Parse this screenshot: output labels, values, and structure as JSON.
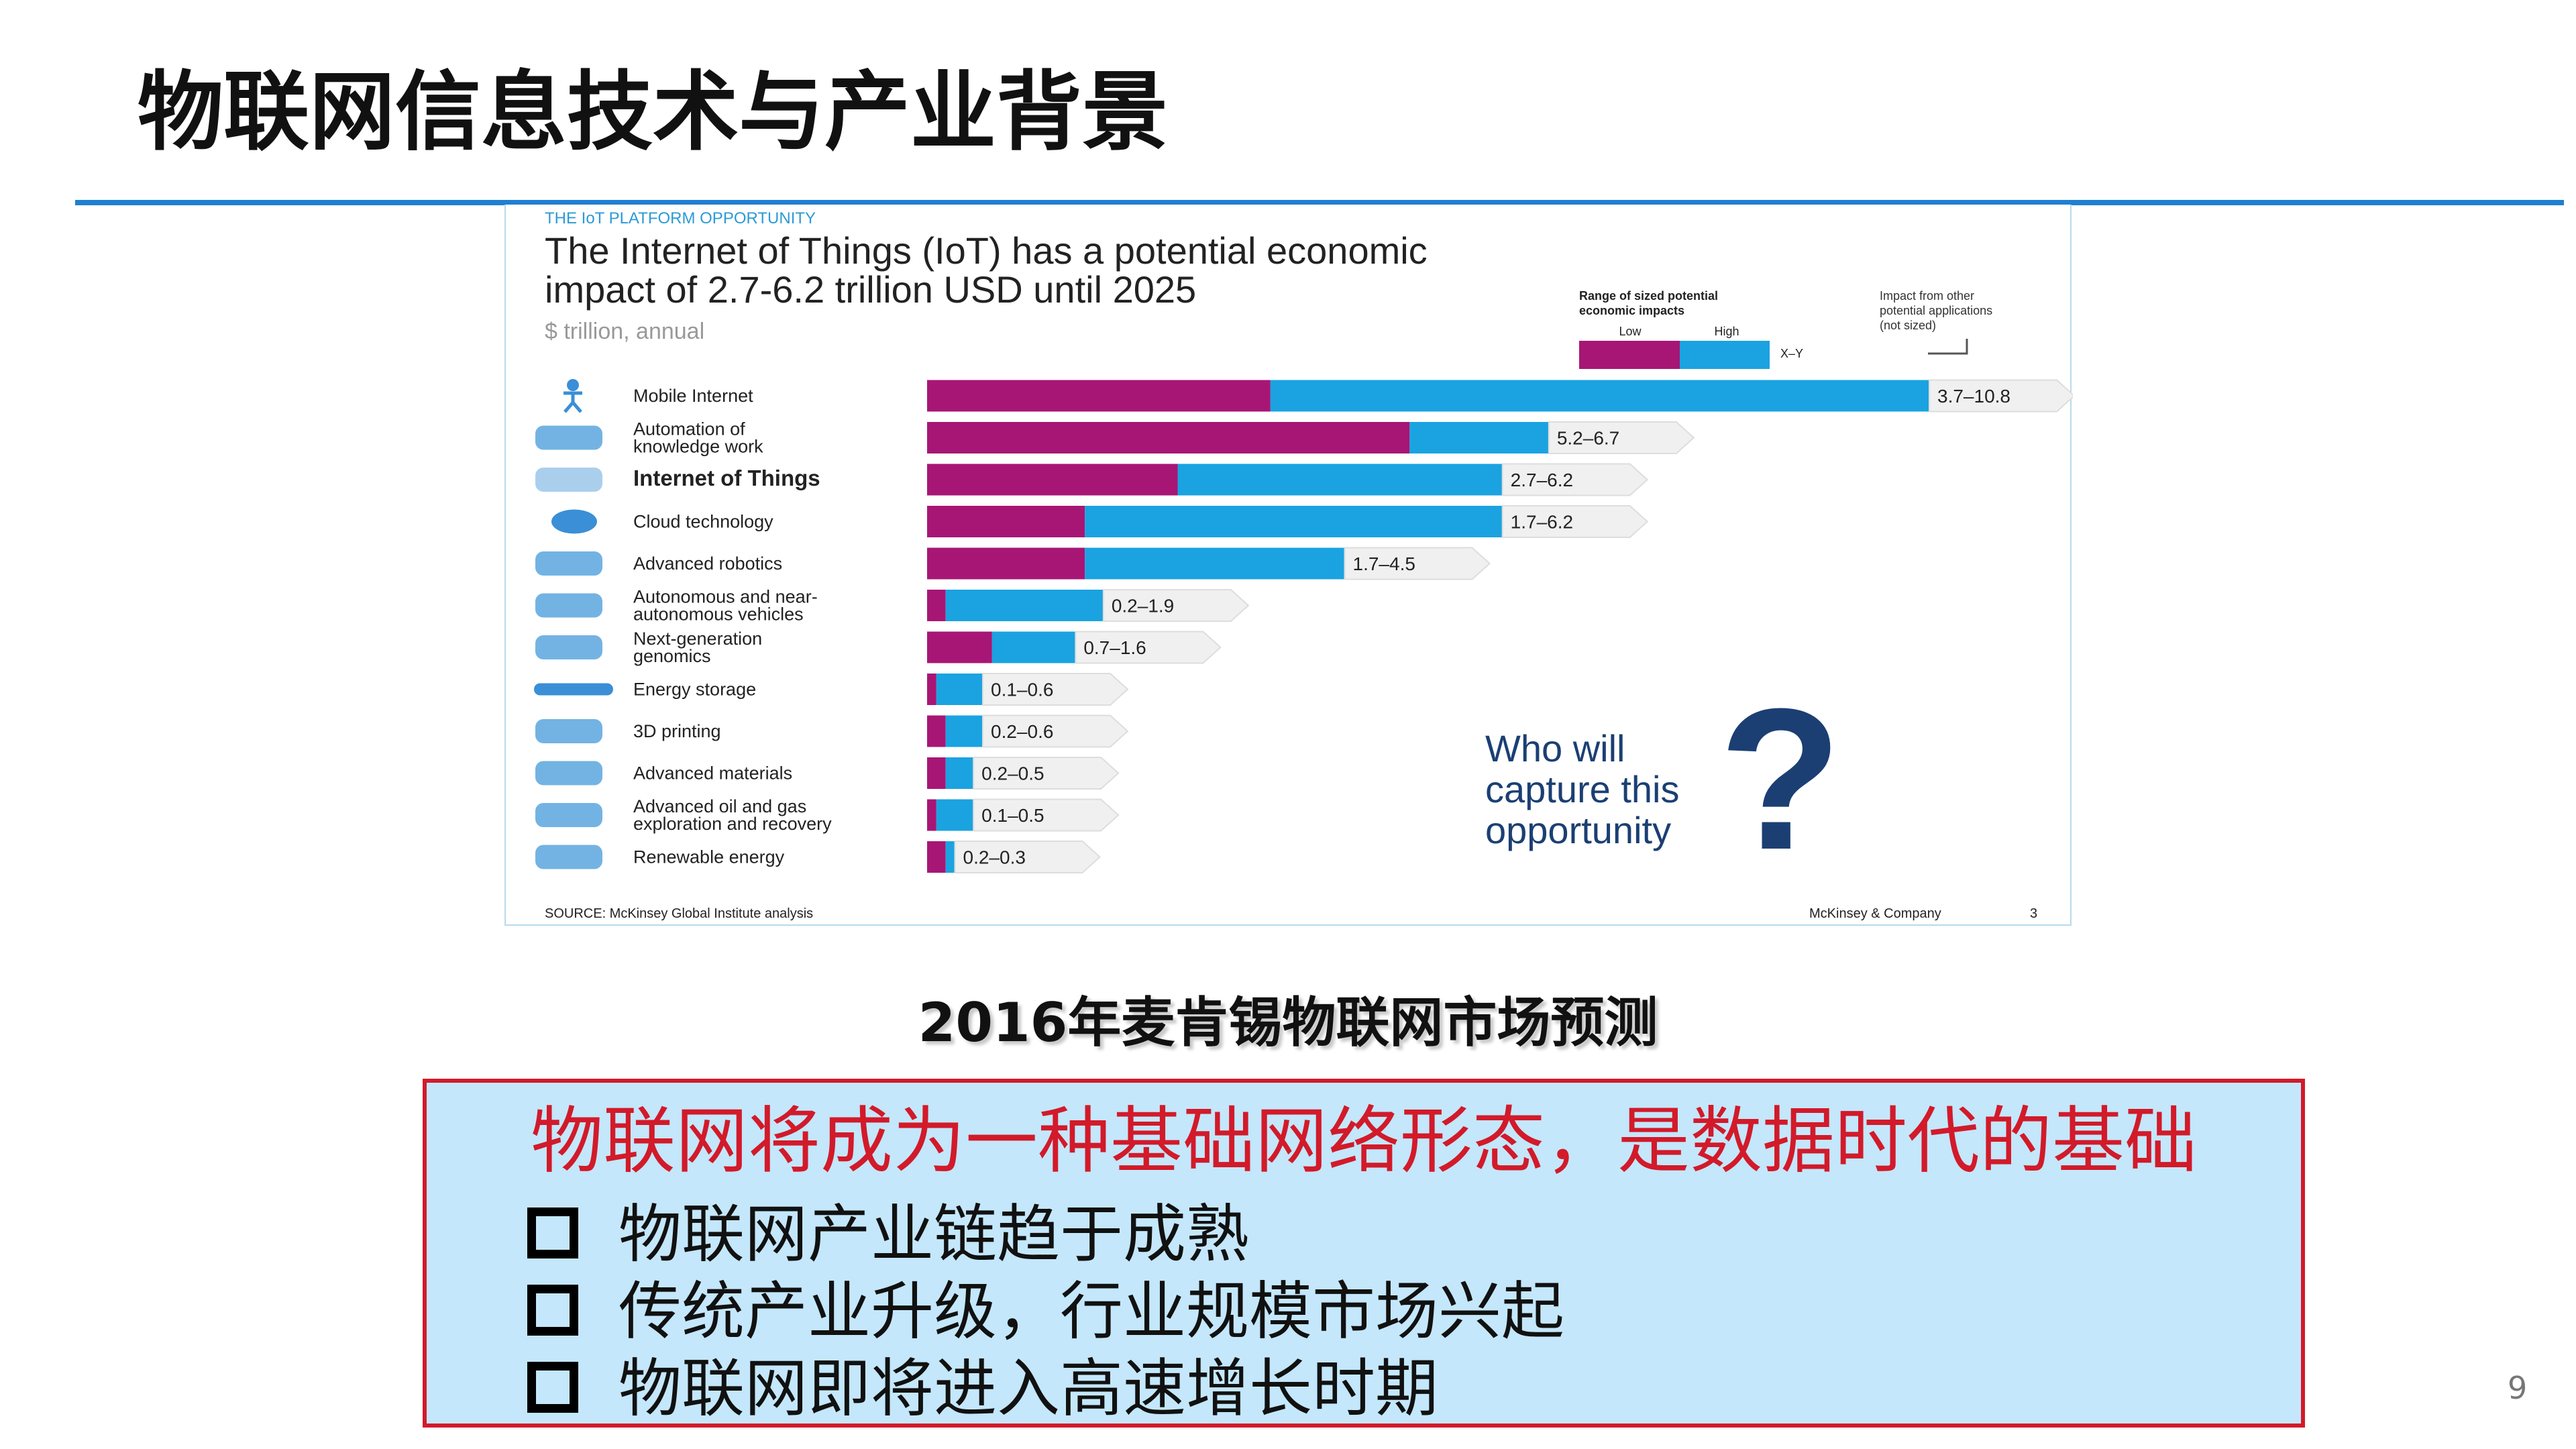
{
  "slide": {
    "title": "物联网信息技术与产业背景",
    "caption": "2016年麦肯锡物联网市场预测",
    "page_number": "9"
  },
  "callout": {
    "headline": "物联网将成为一种基础网络形态，是数据时代的基础",
    "bullets": [
      "物联网产业链趋于成熟",
      "传统产业升级，行业规模市场兴起",
      "物联网即将进入高速增长时期"
    ]
  },
  "chart_data": {
    "type": "bar",
    "kicker": "THE IoT PLATFORM OPPORTUNITY",
    "title_lines": [
      "The Internet of Things (IoT) has a potential economic",
      "impact of 2.7-6.2 trillion USD until 2025"
    ],
    "unit": "$ trillion, annual",
    "legend": {
      "range_label": [
        "Range of sized potential",
        "economic impacts"
      ],
      "low": "Low",
      "high": "High",
      "other_label": [
        "Impact from other",
        "potential applications",
        "(not sized)"
      ],
      "marker": "X–Y",
      "position": "top-right"
    },
    "categories": [
      [
        "Mobile Internet"
      ],
      [
        "Automation of",
        "knowledge work"
      ],
      [
        "Internet of Things"
      ],
      [
        "Cloud technology"
      ],
      [
        "Advanced robotics"
      ],
      [
        "Autonomous and near-",
        "autonomous vehicles"
      ],
      [
        "Next-generation",
        "genomics"
      ],
      [
        "Energy storage"
      ],
      [
        "3D printing"
      ],
      [
        "Advanced materials"
      ],
      [
        "Advanced oil and gas",
        "exploration and recovery"
      ],
      [
        "Renewable energy"
      ]
    ],
    "highlight_category": 2,
    "series": [
      {
        "name": "Low",
        "color": "#a71675",
        "values": [
          3.7,
          5.2,
          2.7,
          1.7,
          1.7,
          0.2,
          0.7,
          0.1,
          0.2,
          0.2,
          0.1,
          0.2
        ]
      },
      {
        "name": "High",
        "color": "#1aa3e0",
        "values": [
          10.8,
          6.7,
          6.2,
          6.2,
          4.5,
          1.9,
          1.6,
          0.6,
          0.6,
          0.5,
          0.5,
          0.3
        ]
      }
    ],
    "value_labels": [
      "3.7–10.8",
      "5.2–6.7",
      "2.7–6.2",
      "1.7–6.2",
      "1.7–4.5",
      "0.2–1.9",
      "0.7–1.6",
      "0.1–0.6",
      "0.2–0.6",
      "0.2–0.5",
      "0.1–0.5",
      "0.2–0.3"
    ],
    "xlim": [
      0,
      10.8
    ],
    "icons": [
      "mobile-person-icon",
      "brain-icon",
      "iot-grid-icon",
      "cloud-icon",
      "robot-arm-icon",
      "vehicles-icon",
      "dna-icon",
      "battery-icon",
      "3d-printer-icon",
      "materials-icon",
      "oil-rig-icon",
      "solar-wind-icon"
    ],
    "callout_text": [
      "Who will",
      "capture this",
      "opportunity"
    ],
    "source": "SOURCE: McKinsey Global Institute analysis",
    "brand": "McKinsey & Company",
    "figure_page": "3"
  }
}
